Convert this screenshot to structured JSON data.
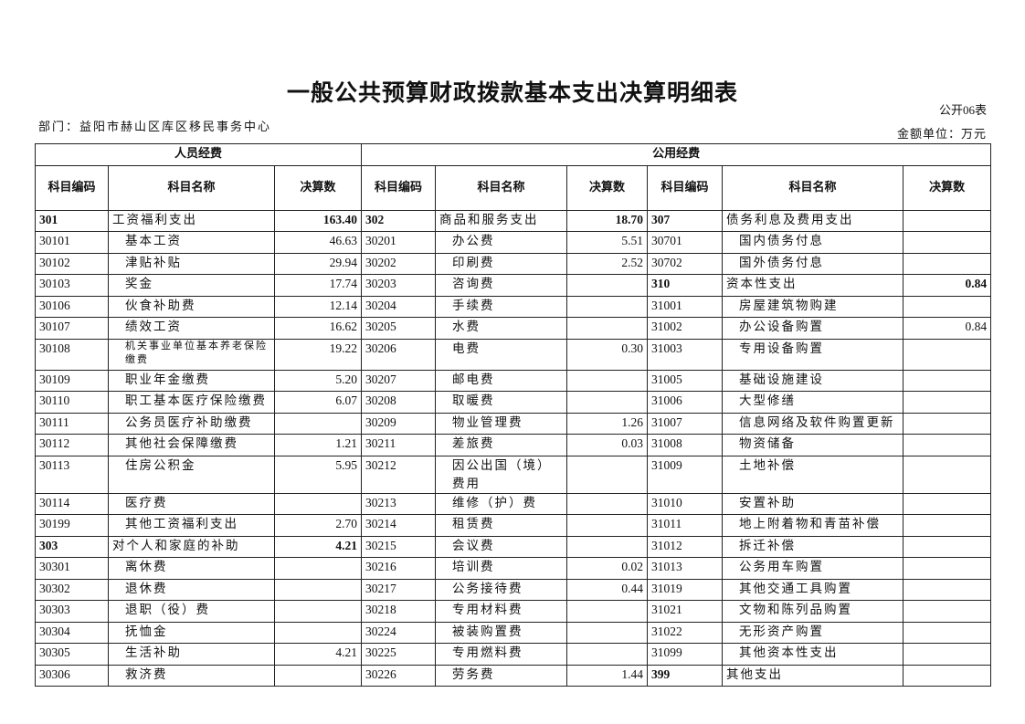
{
  "title": "一般公共预算财政拨款基本支出决算明细表",
  "form_no": "公开06表",
  "department": "部门：益阳市赫山区库区移民事务中心",
  "unit": "金额单位：万元",
  "table": {
    "group_headers": [
      "人员经费",
      "公用经费"
    ],
    "column_headers": [
      "科目编码",
      "科目名称",
      "决算数",
      "科目编码",
      "科目名称",
      "决算数",
      "科目编码",
      "科目名称",
      "决算数"
    ],
    "rows": [
      [
        [
          "301",
          "工资福利支出",
          "163.40",
          1
        ],
        [
          "302",
          "商品和服务支出",
          "18.70",
          1
        ],
        [
          "307",
          "债务利息及费用支出",
          "",
          1
        ]
      ],
      [
        [
          "30101",
          "基本工资",
          "46.63",
          0
        ],
        [
          "30201",
          "办公费",
          "5.51",
          0
        ],
        [
          "30701",
          "国内债务付息",
          "",
          0
        ]
      ],
      [
        [
          "30102",
          "津贴补贴",
          "29.94",
          0
        ],
        [
          "30202",
          "印刷费",
          "2.52",
          0
        ],
        [
          "30702",
          "国外债务付息",
          "",
          0
        ]
      ],
      [
        [
          "30103",
          "奖金",
          "17.74",
          0
        ],
        [
          "30203",
          "咨询费",
          "",
          0
        ],
        [
          "310",
          "资本性支出",
          "0.84",
          1
        ]
      ],
      [
        [
          "30106",
          "伙食补助费",
          "12.14",
          0
        ],
        [
          "30204",
          "手续费",
          "",
          0
        ],
        [
          "31001",
          "房屋建筑物购建",
          "",
          0
        ]
      ],
      [
        [
          "30107",
          "绩效工资",
          "16.62",
          0
        ],
        [
          "30205",
          "水费",
          "",
          0
        ],
        [
          "31002",
          "办公设备购置",
          "0.84",
          0
        ]
      ],
      [
        [
          "30108",
          "机关事业单位基本养老保险缴费",
          "19.22",
          0
        ],
        [
          "30206",
          "电费",
          "0.30",
          0
        ],
        [
          "31003",
          "专用设备购置",
          "",
          0
        ]
      ],
      [
        [
          "30109",
          "职业年金缴费",
          "5.20",
          0
        ],
        [
          "30207",
          "邮电费",
          "",
          0
        ],
        [
          "31005",
          "基础设施建设",
          "",
          0
        ]
      ],
      [
        [
          "30110",
          "职工基本医疗保险缴费",
          "6.07",
          0
        ],
        [
          "30208",
          "取暖费",
          "",
          0
        ],
        [
          "31006",
          "大型修缮",
          "",
          0
        ]
      ],
      [
        [
          "30111",
          "公务员医疗补助缴费",
          "",
          0
        ],
        [
          "30209",
          "物业管理费",
          "1.26",
          0
        ],
        [
          "31007",
          "信息网络及软件购置更新",
          "",
          0
        ]
      ],
      [
        [
          "30112",
          "其他社会保障缴费",
          "1.21",
          0
        ],
        [
          "30211",
          "差旅费",
          "0.03",
          0
        ],
        [
          "31008",
          "物资储备",
          "",
          0
        ]
      ],
      [
        [
          "30113",
          "住房公积金",
          "5.95",
          0
        ],
        [
          "30212",
          "因公出国（境）费用",
          "",
          0
        ],
        [
          "31009",
          "土地补偿",
          "",
          0
        ]
      ],
      [
        [
          "30114",
          "医疗费",
          "",
          0
        ],
        [
          "30213",
          "维修（护）费",
          "",
          0
        ],
        [
          "31010",
          "安置补助",
          "",
          0
        ]
      ],
      [
        [
          "30199",
          "其他工资福利支出",
          "2.70",
          0
        ],
        [
          "30214",
          "租赁费",
          "",
          0
        ],
        [
          "31011",
          "地上附着物和青苗补偿",
          "",
          0
        ]
      ],
      [
        [
          "303",
          "对个人和家庭的补助",
          "4.21",
          1
        ],
        [
          "30215",
          "会议费",
          "",
          0
        ],
        [
          "31012",
          "拆迁补偿",
          "",
          0
        ]
      ],
      [
        [
          "30301",
          "离休费",
          "",
          0
        ],
        [
          "30216",
          "培训费",
          "0.02",
          0
        ],
        [
          "31013",
          "公务用车购置",
          "",
          0
        ]
      ],
      [
        [
          "30302",
          "退休费",
          "",
          0
        ],
        [
          "30217",
          "公务接待费",
          "0.44",
          0
        ],
        [
          "31019",
          "其他交通工具购置",
          "",
          0
        ]
      ],
      [
        [
          "30303",
          "退职（役）费",
          "",
          0
        ],
        [
          "30218",
          "专用材料费",
          "",
          0
        ],
        [
          "31021",
          "文物和陈列品购置",
          "",
          0
        ]
      ],
      [
        [
          "30304",
          "抚恤金",
          "",
          0
        ],
        [
          "30224",
          "被装购置费",
          "",
          0
        ],
        [
          "31022",
          "无形资产购置",
          "",
          0
        ]
      ],
      [
        [
          "30305",
          "生活补助",
          "4.21",
          0
        ],
        [
          "30225",
          "专用燃料费",
          "",
          0
        ],
        [
          "31099",
          "其他资本性支出",
          "",
          0
        ]
      ],
      [
        [
          "30306",
          "救济费",
          "",
          0
        ],
        [
          "30226",
          "劳务费",
          "1.44",
          0
        ],
        [
          "399",
          "其他支出",
          "",
          1
        ]
      ]
    ]
  }
}
